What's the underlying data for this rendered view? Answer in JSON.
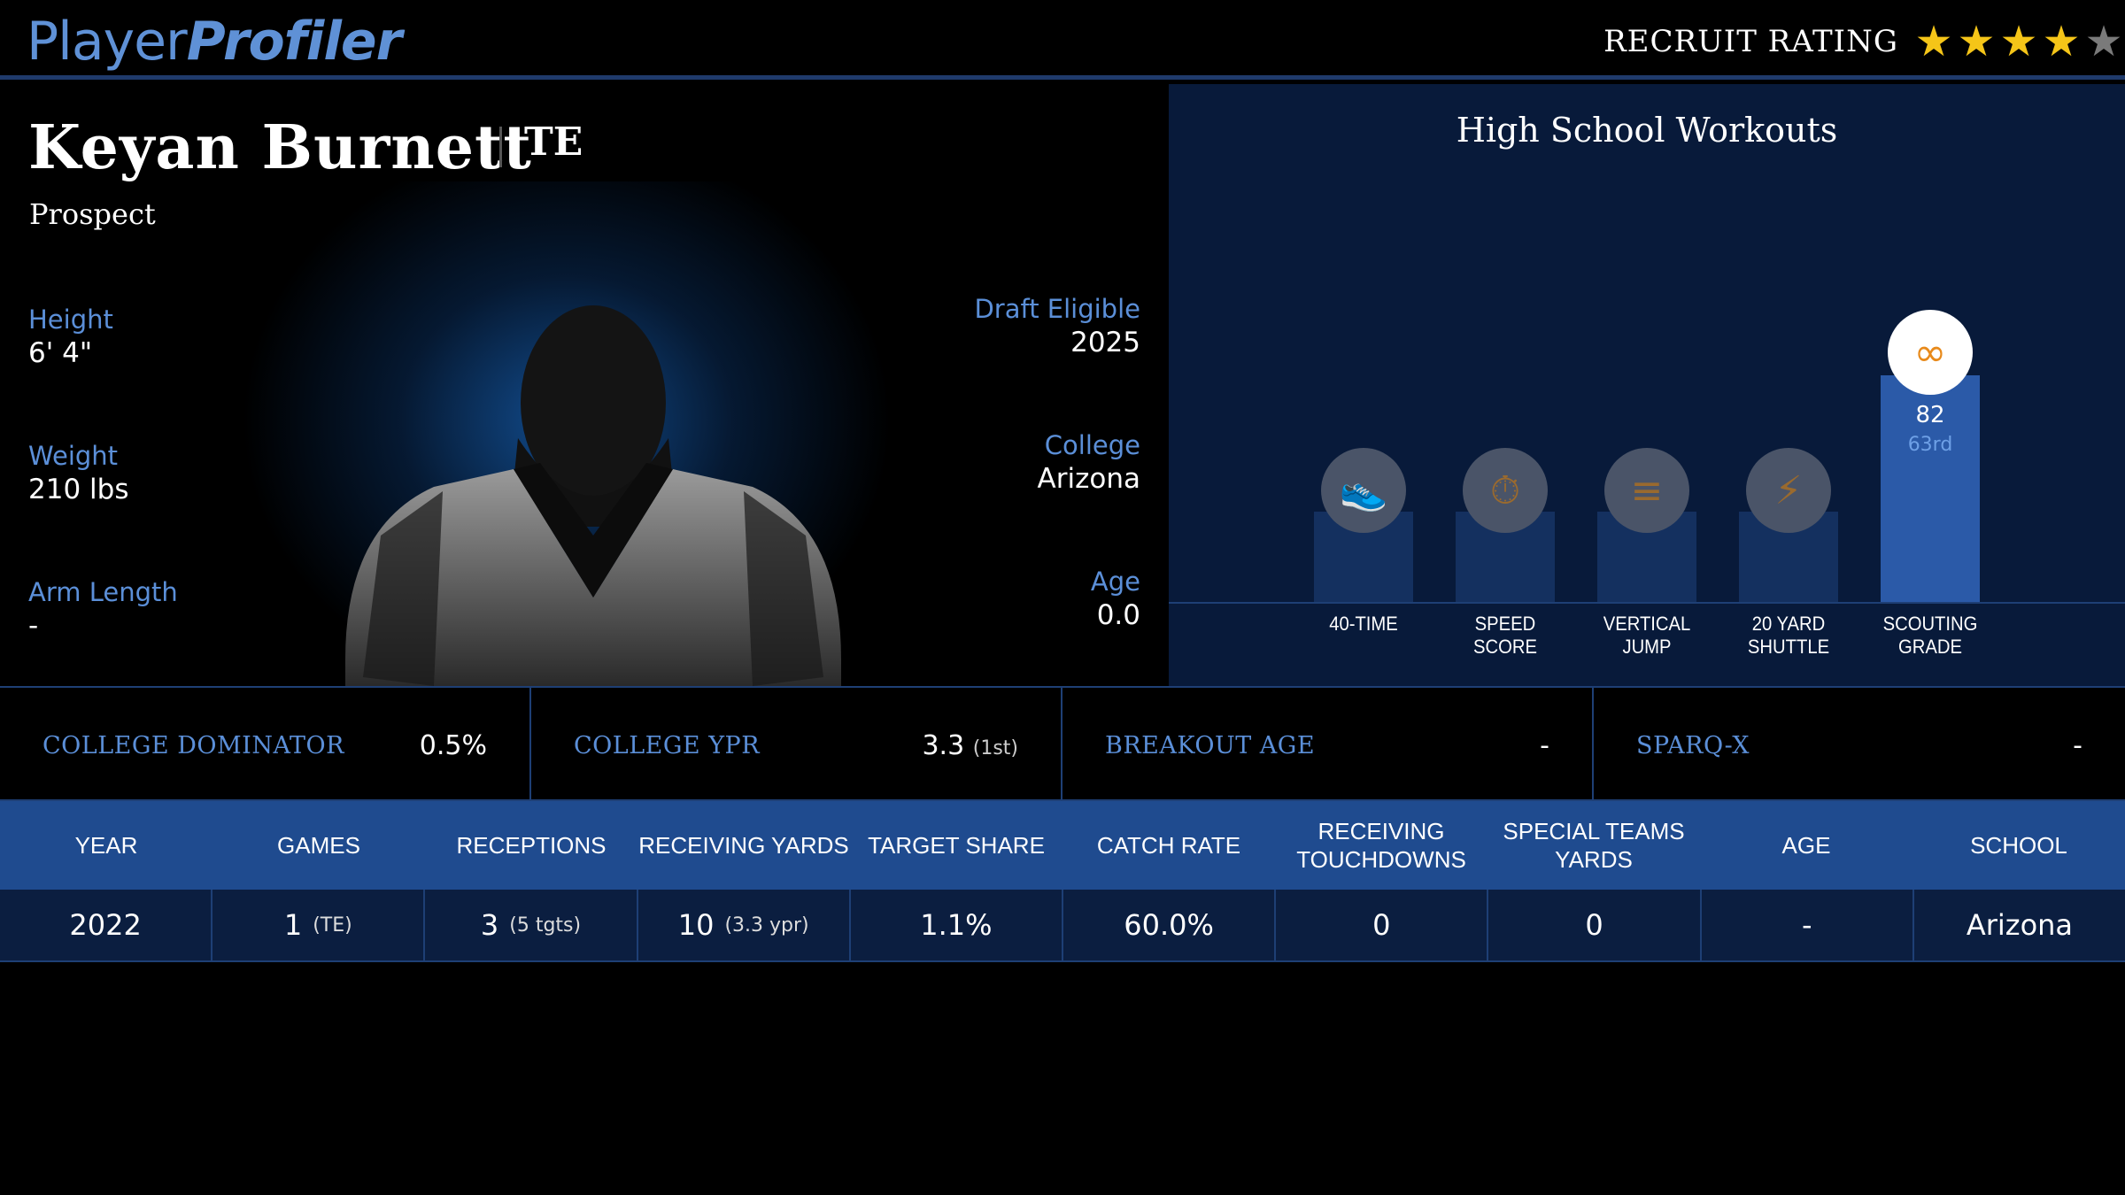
{
  "logo": {
    "part1": "Player",
    "part2": "Profiler"
  },
  "recruit": {
    "label": "RECRUIT RATING",
    "stars_filled": 4,
    "stars_total": 5
  },
  "player": {
    "name": "Keyan Burnett",
    "position": "TE",
    "role": "Prospect",
    "left_attrs": [
      {
        "label": "Height",
        "value": "6' 4\""
      },
      {
        "label": "Weight",
        "value": "210 lbs"
      },
      {
        "label": "Arm Length",
        "value": "-"
      }
    ],
    "right_attrs": [
      {
        "label": "Draft Eligible",
        "value": "2025"
      },
      {
        "label": "College",
        "value": "Arizona"
      },
      {
        "label": "Age",
        "value": "0.0"
      }
    ]
  },
  "workouts": {
    "title": "High School Workouts",
    "items": [
      {
        "label_1": "40-TIME",
        "label_2": "",
        "icon": "shoe-icon",
        "glyph": "👟",
        "active": false
      },
      {
        "label_1": "SPEED",
        "label_2": "SCORE",
        "icon": "stopwatch-icon",
        "glyph": "⏱",
        "active": false
      },
      {
        "label_1": "VERTICAL",
        "label_2": "JUMP",
        "icon": "chevrons-up-icon",
        "glyph": "≡",
        "active": false
      },
      {
        "label_1": "20 YARD",
        "label_2": "SHUTTLE",
        "icon": "lightning-icon",
        "glyph": "⚡",
        "active": false
      },
      {
        "label_1": "SCOUTING",
        "label_2": "GRADE",
        "icon": "binoculars-icon",
        "glyph": "∞",
        "active": true,
        "value": "82",
        "rank": "63rd"
      }
    ]
  },
  "metrics": [
    {
      "label": "COLLEGE DOMINATOR",
      "value": "0.5%",
      "note": ""
    },
    {
      "label": "COLLEGE YPR",
      "value": "3.3",
      "note": "(1st)"
    },
    {
      "label": "BREAKOUT AGE",
      "value": "-",
      "note": ""
    },
    {
      "label": "SPARQ-X",
      "value": "-",
      "note": ""
    }
  ],
  "table": {
    "headers": [
      [
        "YEAR",
        ""
      ],
      [
        "GAMES",
        ""
      ],
      [
        "RECEPTIONS",
        ""
      ],
      [
        "RECEIVING YARDS",
        ""
      ],
      [
        "TARGET SHARE",
        ""
      ],
      [
        "CATCH RATE",
        ""
      ],
      [
        "RECEIVING",
        "TOUCHDOWNS"
      ],
      [
        "SPECIAL TEAMS",
        "YARDS"
      ],
      [
        "AGE",
        ""
      ],
      [
        "SCHOOL",
        ""
      ]
    ],
    "rows": [
      [
        {
          "v": "2022",
          "s": ""
        },
        {
          "v": "1",
          "s": "(TE)"
        },
        {
          "v": "3",
          "s": "(5 tgts)"
        },
        {
          "v": "10",
          "s": "(3.3 ypr)"
        },
        {
          "v": "1.1%",
          "s": ""
        },
        {
          "v": "60.0%",
          "s": ""
        },
        {
          "v": "0",
          "s": ""
        },
        {
          "v": "0",
          "s": ""
        },
        {
          "v": "-",
          "s": ""
        },
        {
          "v": "Arizona",
          "s": ""
        }
      ]
    ]
  }
}
